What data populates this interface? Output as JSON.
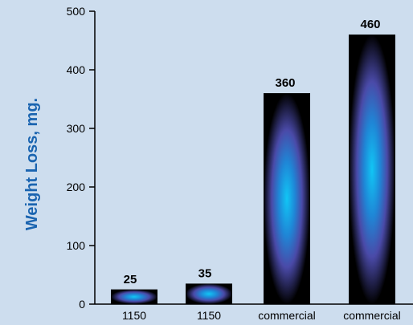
{
  "chart_data": {
    "type": "bar",
    "categories": [
      "1150",
      "1150",
      "commercial",
      "commercial"
    ],
    "values": [
      25,
      35,
      360,
      460
    ],
    "data_labels": [
      "25",
      "35",
      "360",
      "460"
    ],
    "title": "",
    "xlabel": "",
    "ylabel": "Weight Loss, mg.",
    "ylim": [
      0,
      500
    ],
    "yticks": [
      0,
      100,
      200,
      300,
      400,
      500
    ],
    "ytick_labels": [
      "0",
      "100",
      "200",
      "300",
      "400",
      "500"
    ],
    "grid": false,
    "legend": "none"
  },
  "colors": {
    "background": "#cdddee",
    "bar_fill": "#000000",
    "bar_glow_center": "#11c6f5",
    "bar_glow_mid": "#4a4aa8",
    "ylabel_color": "#1a64b0",
    "axis_color": "#000000"
  }
}
